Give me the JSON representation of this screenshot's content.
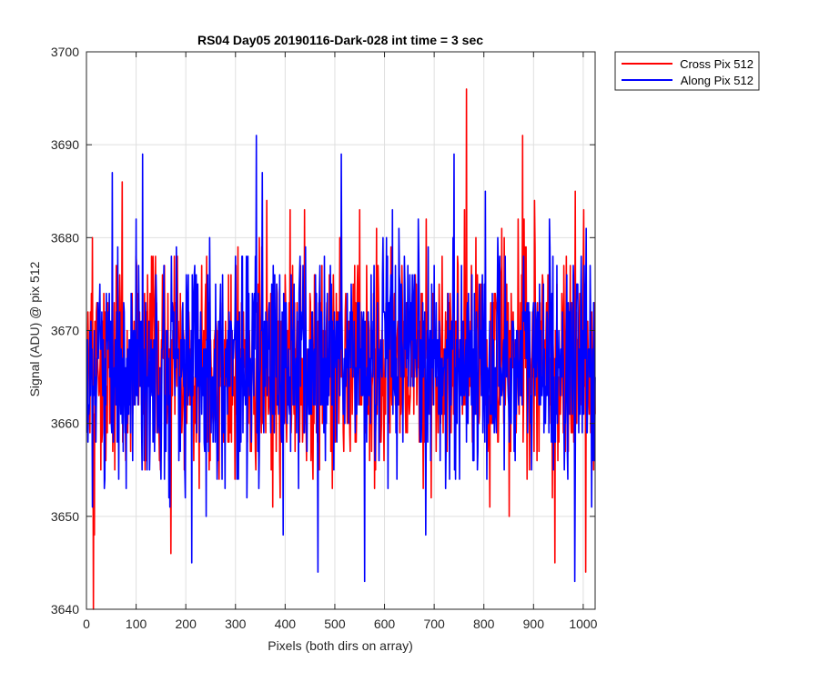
{
  "chart_data": {
    "type": "line",
    "title": "RS04 Day05 20190116-Dark-028 int time = 3 sec",
    "xlabel": "Pixels (both dirs on array)",
    "ylabel": "Signal (ADU) @ pix 512",
    "xlim": [
      0,
      1024
    ],
    "ylim": [
      3640,
      3700
    ],
    "x_ticks": [
      0,
      100,
      200,
      300,
      400,
      500,
      600,
      700,
      800,
      900,
      1000
    ],
    "y_ticks": [
      3640,
      3650,
      3660,
      3670,
      3680,
      3690,
      3700
    ],
    "grid": true,
    "legend_position": "outside-top-right",
    "series": [
      {
        "name": "Cross Pix 512",
        "color": "#ff0000",
        "x_start": 1,
        "x_step": 1,
        "mean": 3666.5,
        "std": 6.3,
        "values_note_highlights": [
          [
            14,
            3640
          ],
          [
            765,
            3696
          ],
          [
            878,
            3691
          ],
          [
            72,
            3686
          ],
          [
            943,
            3645
          ],
          [
            170,
            3646
          ]
        ]
      },
      {
        "name": "Along Pix 512",
        "color": "#0000ff",
        "x_start": 1,
        "x_step": 1,
        "mean": 3666.5,
        "std": 6.0,
        "values_note_highlights": [
          [
            342,
            3691
          ],
          [
            113,
            3689
          ],
          [
            513,
            3689
          ],
          [
            740,
            3689
          ],
          [
            560,
            3643
          ],
          [
            983,
            3643
          ],
          [
            466,
            3644
          ],
          [
            212,
            3645
          ]
        ]
      }
    ]
  }
}
